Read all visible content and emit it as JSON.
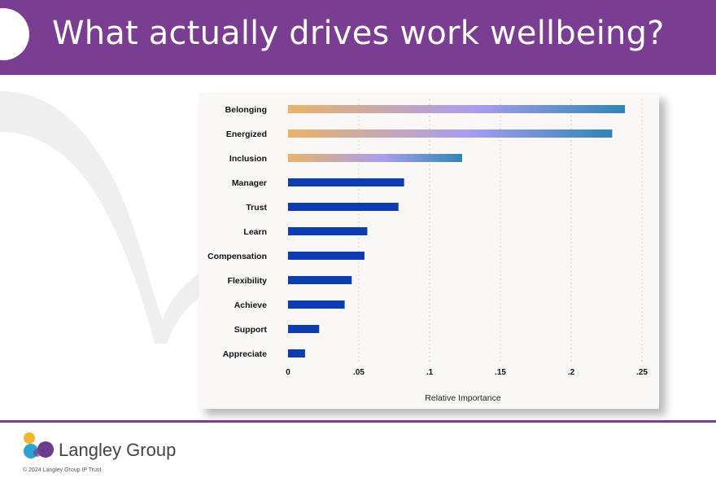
{
  "header": {
    "title": "What actually drives work wellbeing?"
  },
  "brand": {
    "name": "Langley Group",
    "copyright": "© 2024 Langley Group IP Trust"
  },
  "colors": {
    "header": "#7b3d92",
    "bar_blue": "#0b3db0",
    "grad_start": "#e8b36a",
    "grad_mid": "#a99df0",
    "grad_end": "#2f86b5"
  },
  "chart_data": {
    "type": "bar",
    "orientation": "horizontal",
    "categories": [
      "Belonging",
      "Energized",
      "Inclusion",
      "Manager",
      "Trust",
      "Learn",
      "Compensation",
      "Flexibility",
      "Achieve",
      "Support",
      "Appreciate"
    ],
    "values": [
      0.238,
      0.229,
      0.123,
      0.082,
      0.078,
      0.056,
      0.054,
      0.045,
      0.04,
      0.022,
      0.012
    ],
    "highlighted": [
      "Belonging",
      "Energized",
      "Inclusion"
    ],
    "xlabel": "Relative Importance",
    "ylabel": "",
    "xlim": [
      0,
      0.25
    ],
    "xticks": [
      0,
      0.05,
      0.1,
      0.15,
      0.2,
      0.25
    ],
    "xtick_labels": [
      "0",
      ".05",
      ".1",
      ".15",
      ".2",
      ".25"
    ],
    "grid": "vertical dashed"
  }
}
